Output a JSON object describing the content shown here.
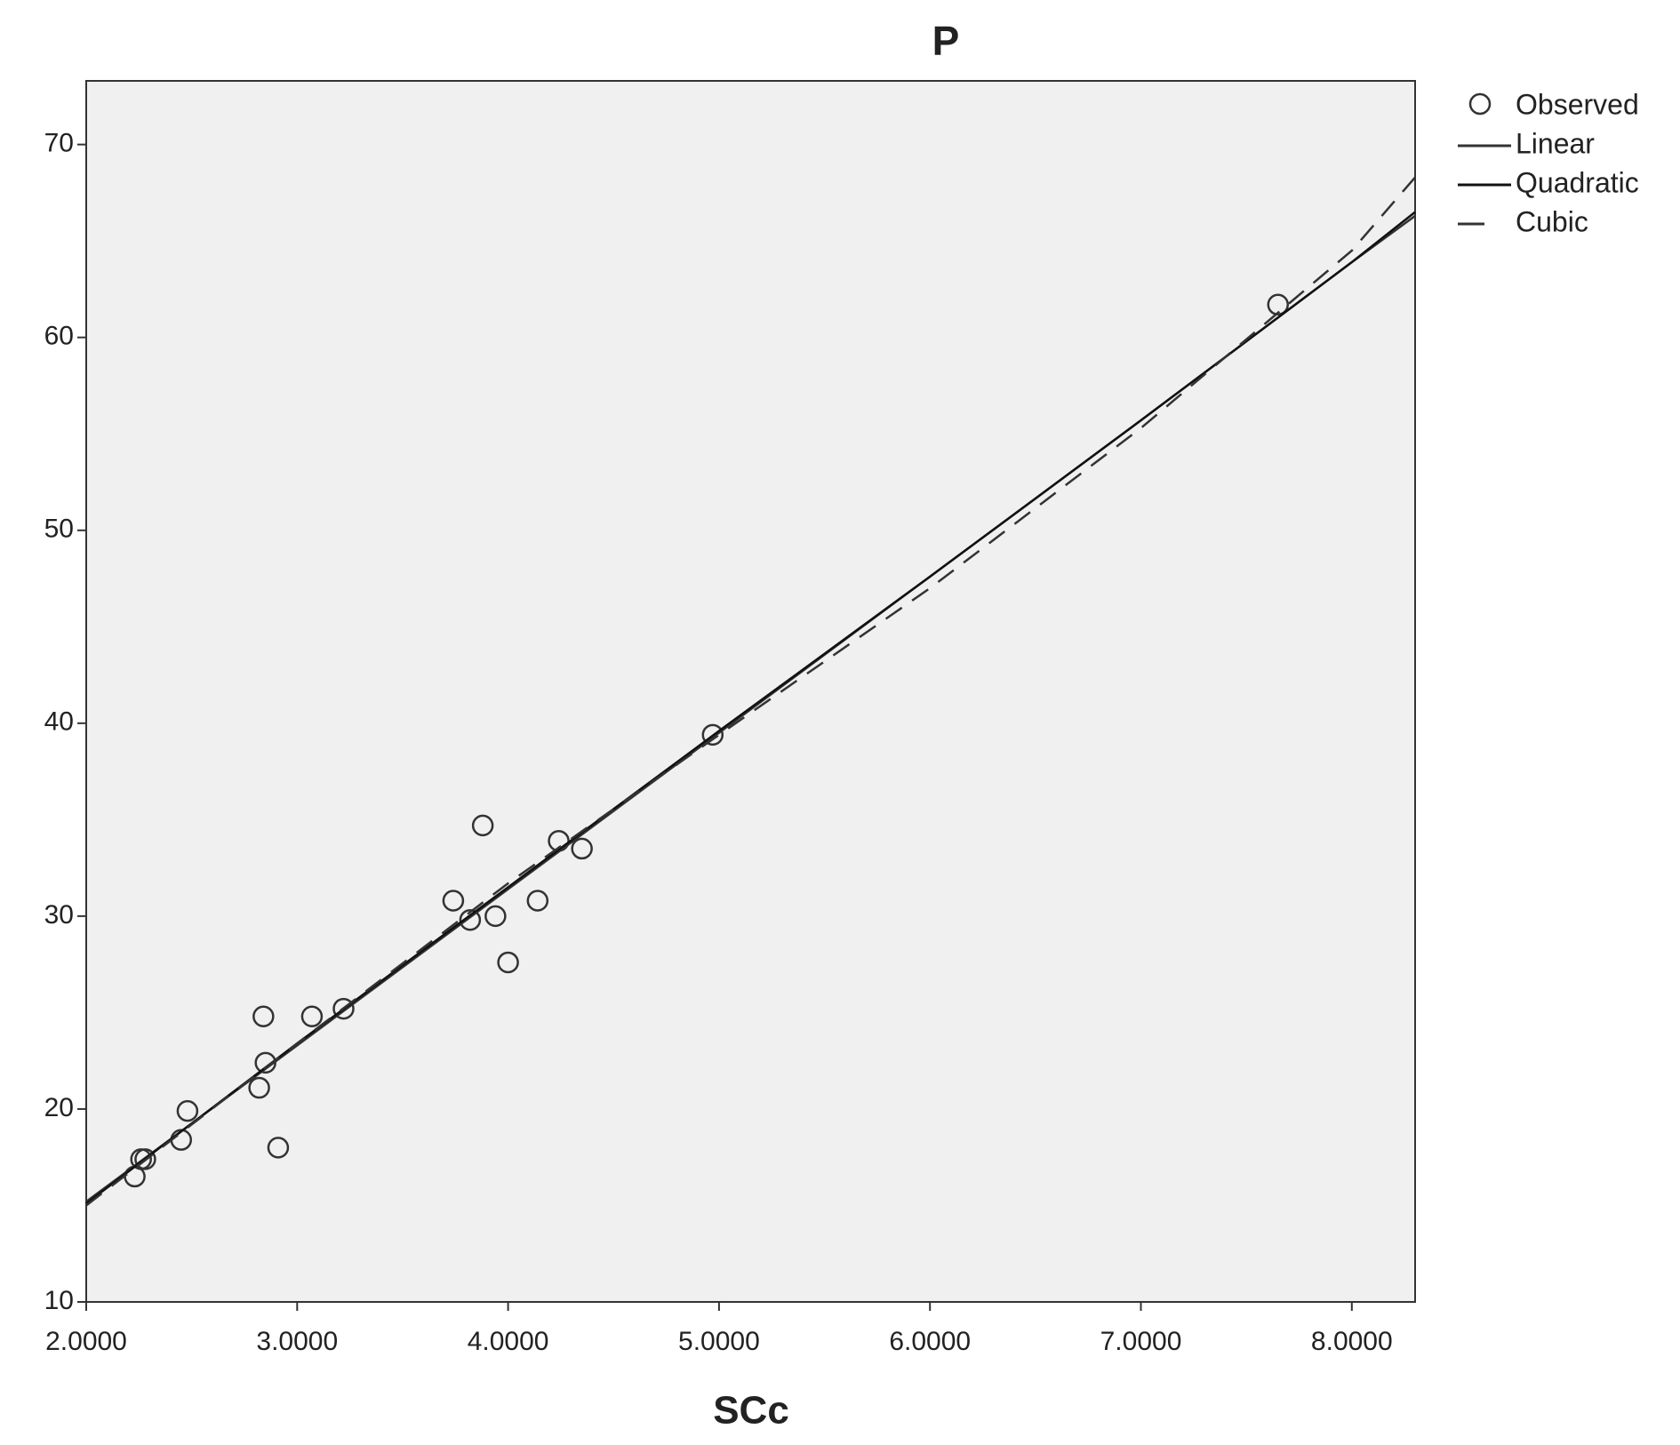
{
  "chart_data": {
    "type": "scatter",
    "title": "P",
    "x_label": "SCc",
    "xlim": [
      2.0,
      8.3
    ],
    "ylim": [
      10,
      73.3
    ],
    "xticks": [
      {
        "value": 2,
        "label": "2.0000"
      },
      {
        "value": 3,
        "label": "3.0000"
      },
      {
        "value": 4,
        "label": "4.0000"
      },
      {
        "value": 5,
        "label": "5.0000"
      },
      {
        "value": 6,
        "label": "6.0000"
      },
      {
        "value": 7,
        "label": "7.0000"
      },
      {
        "value": 8,
        "label": "8.0000"
      }
    ],
    "yticks": [
      10,
      20,
      30,
      40,
      50,
      60,
      70
    ],
    "legend": "outside-right-top",
    "series": [
      {
        "name": "Observed",
        "mode": "markers",
        "color": "#333333",
        "x": [
          2.23,
          2.26,
          2.28,
          2.45,
          2.48,
          2.84,
          2.82,
          2.85,
          2.91,
          3.07,
          3.22,
          3.74,
          3.82,
          3.88,
          3.94,
          4.0,
          4.14,
          4.24,
          4.35,
          4.97,
          7.65
        ],
        "values": [
          16.5,
          17.4,
          17.4,
          18.4,
          19.9,
          24.8,
          21.1,
          22.4,
          18.0,
          24.8,
          25.2,
          30.8,
          29.8,
          34.7,
          30.0,
          27.6,
          30.8,
          33.9,
          33.5,
          39.4,
          61.7
        ]
      },
      {
        "name": "Linear",
        "mode": "line",
        "line_style": "solid",
        "color": "#333333",
        "x": [
          2,
          3,
          4,
          5,
          6,
          7,
          8,
          8.3
        ],
        "values": [
          15.2,
          23.3,
          31.4,
          39.5,
          47.6,
          55.7,
          63.9,
          66.3
        ]
      },
      {
        "name": "Quadratic",
        "mode": "line",
        "line_style": "solid",
        "color": "#111111",
        "x": [
          2,
          3,
          4,
          5,
          6,
          7,
          8,
          8.3
        ],
        "values": [
          15.1,
          23.4,
          31.5,
          39.6,
          47.6,
          55.7,
          63.9,
          66.5
        ]
      },
      {
        "name": "Cubic",
        "mode": "line",
        "line_style": "dashed",
        "color": "#333333",
        "x": [
          2,
          3,
          4,
          5,
          6,
          7,
          8,
          8.3
        ],
        "values": [
          15.0,
          23.4,
          31.7,
          39.4,
          47.0,
          55.3,
          64.5,
          68.3
        ]
      }
    ]
  }
}
